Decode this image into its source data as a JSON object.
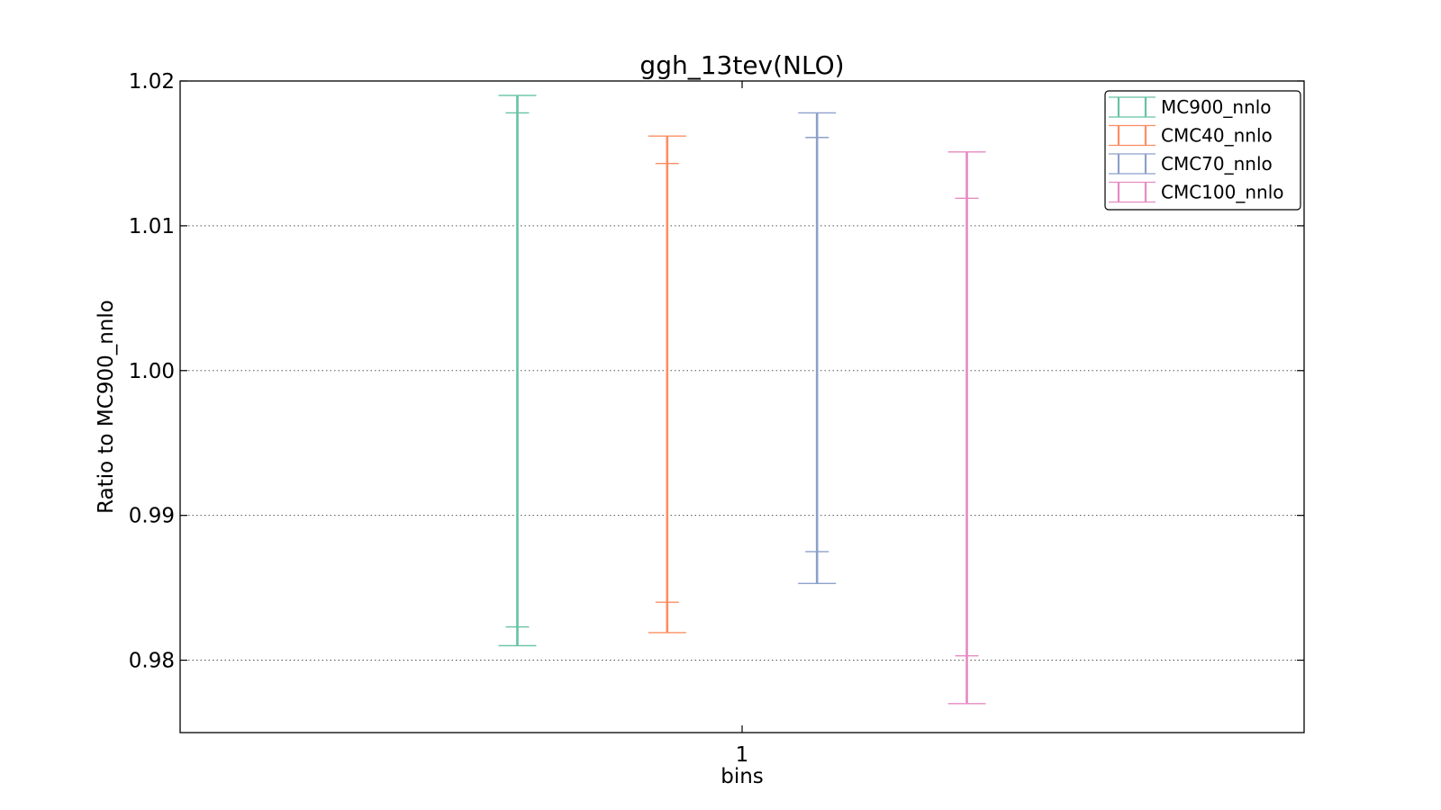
{
  "chart_data": {
    "type": "errorbar",
    "title": "ggh_13tev(NLO)",
    "xlabel": "bins",
    "ylabel": "Ratio to MC900_nnlo",
    "x_ticks": [
      "1"
    ],
    "ylim": [
      0.975,
      1.02
    ],
    "y_ticks": [
      "0.98",
      "0.99",
      "1.00",
      "1.01",
      "1.02"
    ],
    "y_tick_values": [
      0.98,
      0.99,
      1.0,
      1.01,
      1.02
    ],
    "grid": "horizontal dotted",
    "legend_position": "top-right",
    "series": [
      {
        "name": "MC900_nnlo",
        "color": "#66c2a5",
        "outer": [
          0.981,
          1.019
        ],
        "inner": [
          0.9823,
          1.0178
        ]
      },
      {
        "name": "CMC40_nnlo",
        "color": "#fc8d62",
        "outer": [
          0.9819,
          1.0162
        ],
        "inner": [
          0.984,
          1.0143
        ]
      },
      {
        "name": "CMC70_nnlo",
        "color": "#8da0cb",
        "outer": [
          0.9853,
          1.0178
        ],
        "inner": [
          0.9875,
          1.0161
        ]
      },
      {
        "name": "CMC100_nnlo",
        "color": "#e78ac3",
        "outer": [
          0.977,
          1.0151
        ],
        "inner": [
          0.9803,
          1.0119
        ]
      }
    ]
  }
}
